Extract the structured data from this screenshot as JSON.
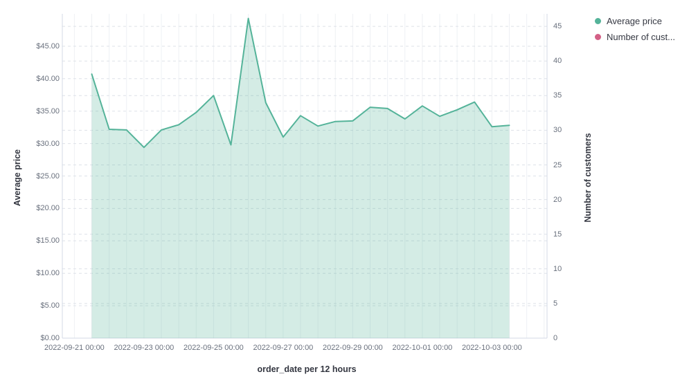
{
  "page": {
    "background": "#ffffff"
  },
  "legend": {
    "position": "top-right",
    "items": [
      {
        "label": "Average price",
        "color": "#54b399"
      },
      {
        "label": "Number of cust...",
        "color": "#d36086"
      }
    ]
  },
  "chart_data": {
    "type": "area",
    "title": "",
    "xlabel": "order_date per 12 hours",
    "grid": {
      "vertical": "solid, every 12 hours",
      "horizontal": "dashed, both axes tick steps"
    },
    "x_axis": {
      "tick_labels": [
        "2022-09-21 00:00",
        "2022-09-23 00:00",
        "2022-09-25 00:00",
        "2022-09-27 00:00",
        "2022-09-29 00:00",
        "2022-10-01 00:00",
        "2022-10-03 00:00"
      ]
    },
    "left_axis": {
      "title": "Average price",
      "tick_labels": [
        "$0.00",
        "$5.00",
        "$10.00",
        "$15.00",
        "$20.00",
        "$25.00",
        "$30.00",
        "$35.00",
        "$40.00",
        "$45.00"
      ],
      "tick_step": 5,
      "range": [
        0,
        50
      ]
    },
    "right_axis": {
      "title": "Number of customers",
      "tick_labels": [
        "0",
        "5",
        "10",
        "15",
        "20",
        "25",
        "30",
        "35",
        "40",
        "45"
      ],
      "tick_step": 5,
      "range": [
        0,
        47
      ]
    },
    "series": [
      {
        "name": "Average price",
        "axis": "left",
        "type": "area",
        "color": "#54b399",
        "fill_opacity": 0.25,
        "x": [
          "2022-09-21 12:00",
          "2022-09-22 00:00",
          "2022-09-22 12:00",
          "2022-09-23 00:00",
          "2022-09-23 12:00",
          "2022-09-24 00:00",
          "2022-09-24 12:00",
          "2022-09-25 00:00",
          "2022-09-25 12:00",
          "2022-09-26 00:00",
          "2022-09-26 12:00",
          "2022-09-27 00:00",
          "2022-09-27 12:00",
          "2022-09-28 00:00",
          "2022-09-28 12:00",
          "2022-09-29 00:00",
          "2022-09-29 12:00",
          "2022-09-30 00:00",
          "2022-09-30 12:00",
          "2022-10-01 00:00",
          "2022-10-01 12:00",
          "2022-10-02 00:00",
          "2022-10-02 12:00",
          "2022-10-03 00:00",
          "2022-10-03 12:00"
        ],
        "values": [
          40.7,
          32.2,
          32.1,
          29.4,
          32.1,
          32.9,
          34.8,
          37.4,
          29.8,
          49.3,
          36.3,
          31.0,
          34.3,
          32.7,
          33.4,
          33.5,
          35.6,
          35.4,
          33.8,
          35.8,
          34.2,
          35.2,
          36.4,
          32.6,
          32.8
        ]
      },
      {
        "name": "Number of customers",
        "axis": "right",
        "type": "line",
        "color": "#d36086",
        "x": [],
        "values": []
      }
    ]
  }
}
